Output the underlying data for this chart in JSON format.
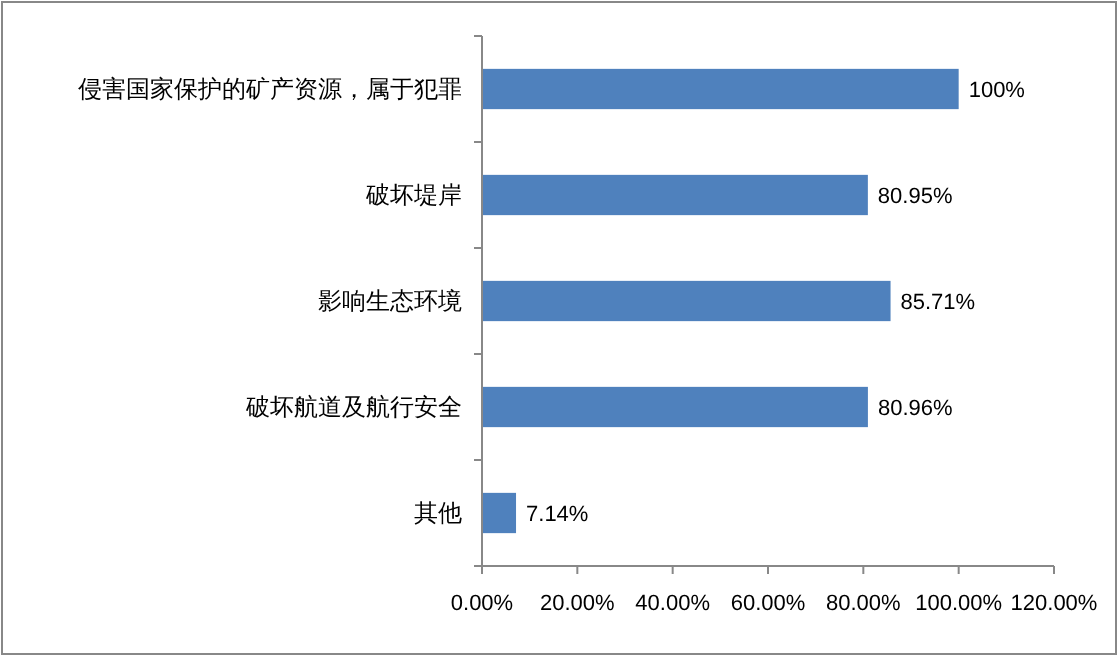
{
  "chart_data": {
    "type": "bar",
    "orientation": "horizontal",
    "categories": [
      "侵害国家保护的矿产资源，属于犯罪",
      "破坏堤岸",
      "影响生态环境",
      "破坏航道及航行安全",
      "其他"
    ],
    "values": [
      100,
      80.95,
      85.71,
      80.96,
      7.14
    ],
    "value_labels": [
      "100%",
      "80.95%",
      "85.71%",
      "80.96%",
      "7.14%"
    ],
    "color": "#4f81bd",
    "xlim": [
      0,
      120
    ],
    "xticks": [
      {
        "value": 0,
        "label": "0.00%"
      },
      {
        "value": 20,
        "label": "20.00%"
      },
      {
        "value": 40,
        "label": "40.00%"
      },
      {
        "value": 60,
        "label": "60.00%"
      },
      {
        "value": 80,
        "label": "80.00%"
      },
      {
        "value": 100,
        "label": "100.00%"
      },
      {
        "value": 120,
        "label": "120.00%"
      }
    ],
    "grid": false
  }
}
